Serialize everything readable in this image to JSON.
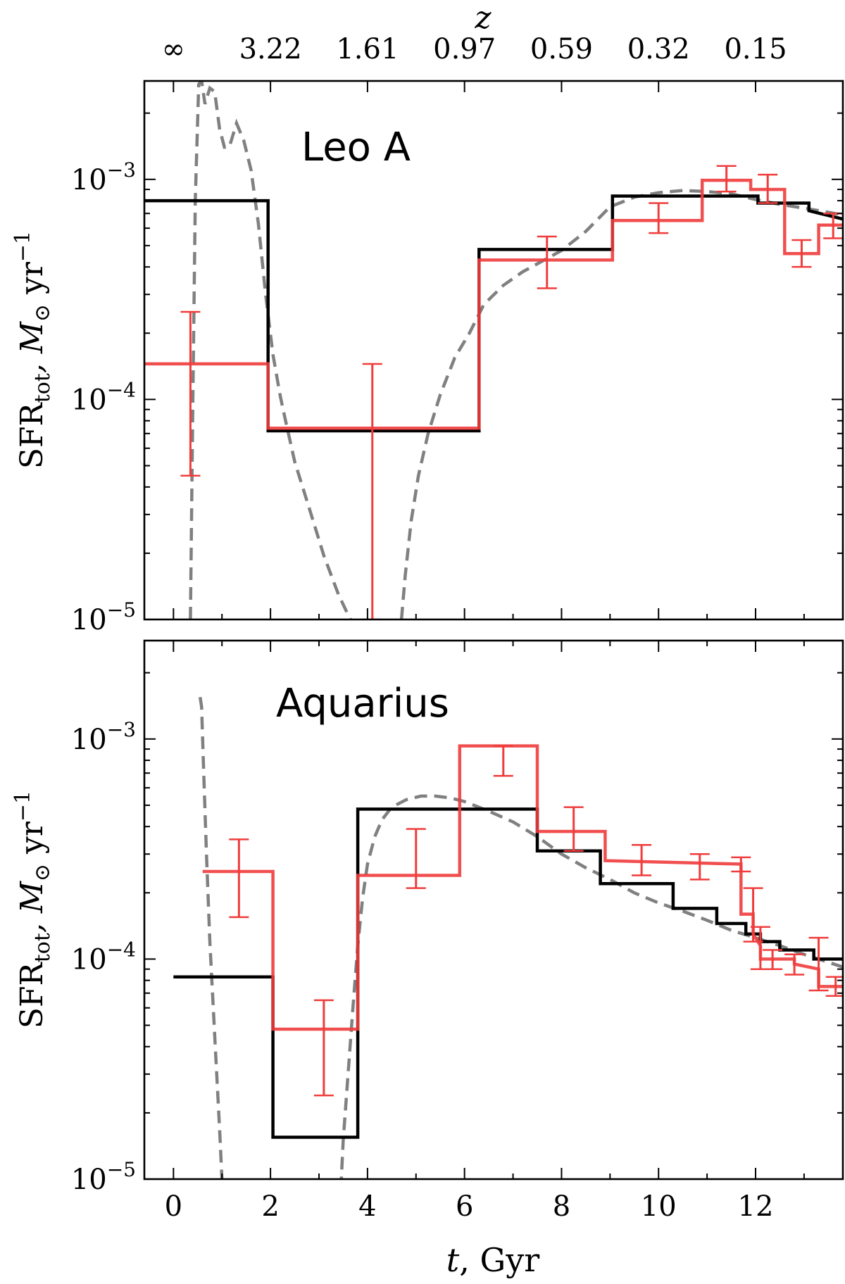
{
  "chart_data": [
    {
      "type": "line",
      "title": "",
      "panel_label": "Leo A",
      "xlabel": "",
      "ylabel_main": "SFR",
      "ylabel_sub": "tot",
      "ylabel_unit_main": ",  M",
      "ylabel_unit_sub": "⊙",
      "ylabel_unit_rest": " yr",
      "ylabel_unit_exp": "−1",
      "xlim": [
        -0.6,
        13.8
      ],
      "ylim": [
        1e-05,
        0.0028
      ],
      "yscale": "log",
      "ytick_labels": [
        {
          "base": "10",
          "exp": "−5",
          "value": 1e-05
        },
        {
          "base": "10",
          "exp": "−4",
          "value": 0.0001
        },
        {
          "base": "10",
          "exp": "−3",
          "value": 0.001
        }
      ],
      "top_axis": {
        "label": "z",
        "ticks": [
          {
            "t": 0.0,
            "label": "∞"
          },
          {
            "t": 2.0,
            "label": "3.22"
          },
          {
            "t": 4.0,
            "label": "1.61"
          },
          {
            "t": 6.0,
            "label": "0.97"
          },
          {
            "t": 8.0,
            "label": "0.59"
          },
          {
            "t": 10.0,
            "label": "0.32"
          },
          {
            "t": 12.0,
            "label": "0.15"
          }
        ]
      },
      "series": [
        {
          "style": "black-step",
          "color": "#000000",
          "x": [
            -0.6,
            1.95,
            1.95,
            6.3,
            6.3,
            9.05,
            9.05,
            12.05,
            12.05,
            13.1,
            13.1,
            13.8
          ],
          "values": [
            0.0008,
            0.0008,
            7.2e-05,
            7.2e-05,
            0.00048,
            0.00048,
            0.00084,
            0.00084,
            0.00078,
            0.00078,
            0.00072,
            0.00066
          ]
        },
        {
          "style": "red-step",
          "color": "#f03c3c",
          "x": [
            -0.6,
            1.95,
            1.95,
            6.3,
            6.3,
            9.05,
            9.05,
            10.9,
            10.9,
            11.9,
            11.9,
            12.6,
            12.6,
            13.3,
            13.3,
            13.8
          ],
          "values": [
            0.000145,
            0.000145,
            7.4e-05,
            7.4e-05,
            0.00043,
            0.00043,
            0.00065,
            0.00065,
            0.00099,
            0.00099,
            0.0009,
            0.0009,
            0.00046,
            0.00046,
            0.00062,
            0.00062
          ]
        },
        {
          "style": "grey-dashed",
          "color": "#808080",
          "x": [
            0.35,
            0.4,
            0.45,
            0.52,
            0.58,
            0.65,
            0.75,
            0.85,
            0.95,
            1.05,
            1.15,
            1.3,
            1.45,
            1.6,
            1.75,
            1.9,
            2.05,
            2.2,
            2.3,
            2.5,
            2.8,
            3.1,
            3.4,
            3.6,
            3.7
          ],
          "values": [
            1e-05,
            0.0001,
            0.0008,
            0.0027,
            0.0028,
            0.0022,
            0.0026,
            0.0025,
            0.0017,
            0.0014,
            0.0014,
            0.0018,
            0.0015,
            0.0011,
            0.00063,
            0.0003,
            0.00016,
            0.000104,
            8.2e-05,
            5.2e-05,
            3.2e-05,
            1.95e-05,
            1.3e-05,
            1.05e-05,
            9.5e-06
          ]
        },
        {
          "style": "grey-dashed",
          "color": "#808080",
          "x": [
            4.7,
            4.78,
            4.9,
            5.05,
            5.25,
            5.5,
            5.8,
            6.1,
            6.4,
            6.8,
            7.2,
            7.6,
            8.0,
            8.5,
            9.0,
            9.5,
            10.0,
            10.5,
            11.0,
            11.5,
            12.0,
            12.5,
            13.0,
            13.8
          ],
          "values": [
            1e-05,
            1.6e-05,
            2.8e-05,
            4.5e-05,
            7e-05,
            0.000105,
            0.000155,
            0.0002,
            0.00027,
            0.00033,
            0.00038,
            0.000425,
            0.000475,
            0.00058,
            0.00075,
            0.00083,
            0.00087,
            0.00089,
            0.00088,
            0.00086,
            0.00081,
            0.00077,
            0.00074,
            0.00069
          ]
        }
      ],
      "error_bars": [
        {
          "x": 0.35,
          "y": 0.000145,
          "low": 4.5e-05,
          "high": 0.00025
        },
        {
          "x": 4.1,
          "y": 7.4e-05,
          "low": 1e-05,
          "high": 0.000145
        },
        {
          "x": 7.7,
          "y": 0.00043,
          "low": 0.00032,
          "high": 0.00055
        },
        {
          "x": 10.0,
          "y": 0.00065,
          "low": 0.00057,
          "high": 0.00078
        },
        {
          "x": 11.4,
          "y": 0.00099,
          "low": 0.00088,
          "high": 0.00115
        },
        {
          "x": 12.25,
          "y": 0.0009,
          "low": 0.00078,
          "high": 0.00105
        },
        {
          "x": 12.95,
          "y": 0.00046,
          "low": 0.0004,
          "high": 0.00053
        },
        {
          "x": 13.6,
          "y": 0.00062,
          "low": 0.00054,
          "high": 0.0007
        }
      ]
    },
    {
      "type": "line",
      "title": "",
      "panel_label": "Aquarius",
      "xlabel_main": "t",
      "xlabel_rest": ",  Gyr",
      "ylabel_main": "SFR",
      "ylabel_sub": "tot",
      "ylabel_unit_main": ",  M",
      "ylabel_unit_sub": "⊙",
      "ylabel_unit_rest": " yr",
      "ylabel_unit_exp": "−1",
      "xlim": [
        -0.6,
        13.8
      ],
      "ylim": [
        1e-05,
        0.0028
      ],
      "yscale": "log",
      "xticks": [
        0,
        2,
        4,
        6,
        8,
        10,
        12
      ],
      "xtick_labels": [
        "0",
        "2",
        "4",
        "6",
        "8",
        "10",
        "12"
      ],
      "ytick_labels": [
        {
          "base": "10",
          "exp": "−5",
          "value": 1e-05
        },
        {
          "base": "10",
          "exp": "−4",
          "value": 0.0001
        },
        {
          "base": "10",
          "exp": "−3",
          "value": 0.001
        }
      ],
      "series": [
        {
          "style": "black-step",
          "color": "#000000",
          "x": [
            0.0,
            2.05,
            2.05,
            3.8,
            3.8,
            7.5,
            7.5,
            8.8,
            8.8,
            10.3,
            10.3,
            11.2,
            11.2,
            11.8,
            11.8,
            12.1,
            12.1,
            12.5,
            12.5,
            13.2,
            13.2,
            13.8
          ],
          "values": [
            8.3e-05,
            8.3e-05,
            1.55e-05,
            1.55e-05,
            0.00048,
            0.00048,
            0.00031,
            0.00031,
            0.00022,
            0.00022,
            0.00017,
            0.00017,
            0.000145,
            0.000145,
            0.00013,
            0.00013,
            0.00012,
            0.00012,
            0.00011,
            0.00011,
            0.0001,
            0.0001
          ]
        },
        {
          "style": "red-step",
          "color": "#f03c3c",
          "x": [
            0.6,
            2.05,
            2.05,
            3.8,
            3.8,
            5.9,
            5.9,
            7.5,
            7.5,
            8.9,
            8.9,
            11.7,
            11.7,
            11.95,
            11.95,
            12.1,
            12.1,
            12.8,
            12.8,
            13.3,
            13.3,
            13.8
          ],
          "values": [
            0.00025,
            0.00025,
            4.8e-05,
            4.8e-05,
            0.00024,
            0.00024,
            0.00093,
            0.00093,
            0.00038,
            0.00038,
            0.00028,
            0.00027,
            0.00016,
            0.00016,
            0.00013,
            0.000115,
            0.0001,
            0.0001,
            9.5e-05,
            9e-05,
            7.5e-05,
            7.5e-05
          ]
        },
        {
          "style": "grey-dashed",
          "color": "#808080",
          "x": [
            0.55,
            0.58,
            0.62,
            0.68,
            0.75,
            0.85,
            0.95,
            1.0
          ],
          "values": [
            0.00155,
            0.0014,
            0.00075,
            0.0003,
            0.00012,
            4.5e-05,
            1.7e-05,
            1e-05
          ]
        },
        {
          "style": "grey-dashed",
          "color": "#808080",
          "x": [
            3.45,
            3.5,
            3.6,
            3.7,
            3.8,
            3.9,
            4.0,
            4.15,
            4.3,
            4.5,
            4.8,
            5.1,
            5.4,
            5.7,
            6.0,
            6.5,
            7.0,
            7.5,
            8.0,
            8.5,
            9.0,
            9.5,
            10.0,
            10.5,
            11.0,
            11.5,
            12.0,
            12.5,
            13.0,
            13.8
          ],
          "values": [
            9e-06,
            1.5e-05,
            3e-05,
            6e-05,
            0.000115,
            0.00019,
            0.00027,
            0.00036,
            0.00043,
            0.00049,
            0.00053,
            0.00055,
            0.00055,
            0.00054,
            0.00052,
            0.00047,
            0.00042,
            0.00036,
            0.0003,
            0.00026,
            0.00023,
            0.0002,
            0.00018,
            0.000165,
            0.00015,
            0.000135,
            0.000125,
            0.000115,
            0.000105,
            9.2e-05
          ]
        }
      ],
      "error_bars": [
        {
          "x": 1.35,
          "y": 0.00025,
          "low": 0.000155,
          "high": 0.00035
        },
        {
          "x": 3.1,
          "y": 4.8e-05,
          "low": 2.4e-05,
          "high": 6.5e-05
        },
        {
          "x": 5.0,
          "y": 0.00024,
          "low": 0.00021,
          "high": 0.00039
        },
        {
          "x": 6.8,
          "y": 0.00093,
          "low": 0.00068,
          "high": 0.00093
        },
        {
          "x": 8.25,
          "y": 0.00038,
          "low": 0.00031,
          "high": 0.00049
        },
        {
          "x": 9.65,
          "y": 0.00028,
          "low": 0.00024,
          "high": 0.00033
        },
        {
          "x": 10.85,
          "y": 0.000275,
          "low": 0.00023,
          "high": 0.0003
        },
        {
          "x": 11.7,
          "y": 0.00027,
          "low": 0.00025,
          "high": 0.00029
        },
        {
          "x": 11.95,
          "y": 0.00016,
          "low": 0.00012,
          "high": 0.00021
        },
        {
          "x": 12.1,
          "y": 0.000115,
          "low": 9e-05,
          "high": 0.00014
        },
        {
          "x": 12.35,
          "y": 0.0001,
          "low": 9e-05,
          "high": 0.00011
        },
        {
          "x": 12.8,
          "y": 9.5e-05,
          "low": 8.5e-05,
          "high": 0.000105
        },
        {
          "x": 13.3,
          "y": 9e-05,
          "low": 7.2e-05,
          "high": 0.000125
        },
        {
          "x": 13.65,
          "y": 7.5e-05,
          "low": 6.8e-05,
          "high": 8.3e-05
        }
      ]
    }
  ]
}
